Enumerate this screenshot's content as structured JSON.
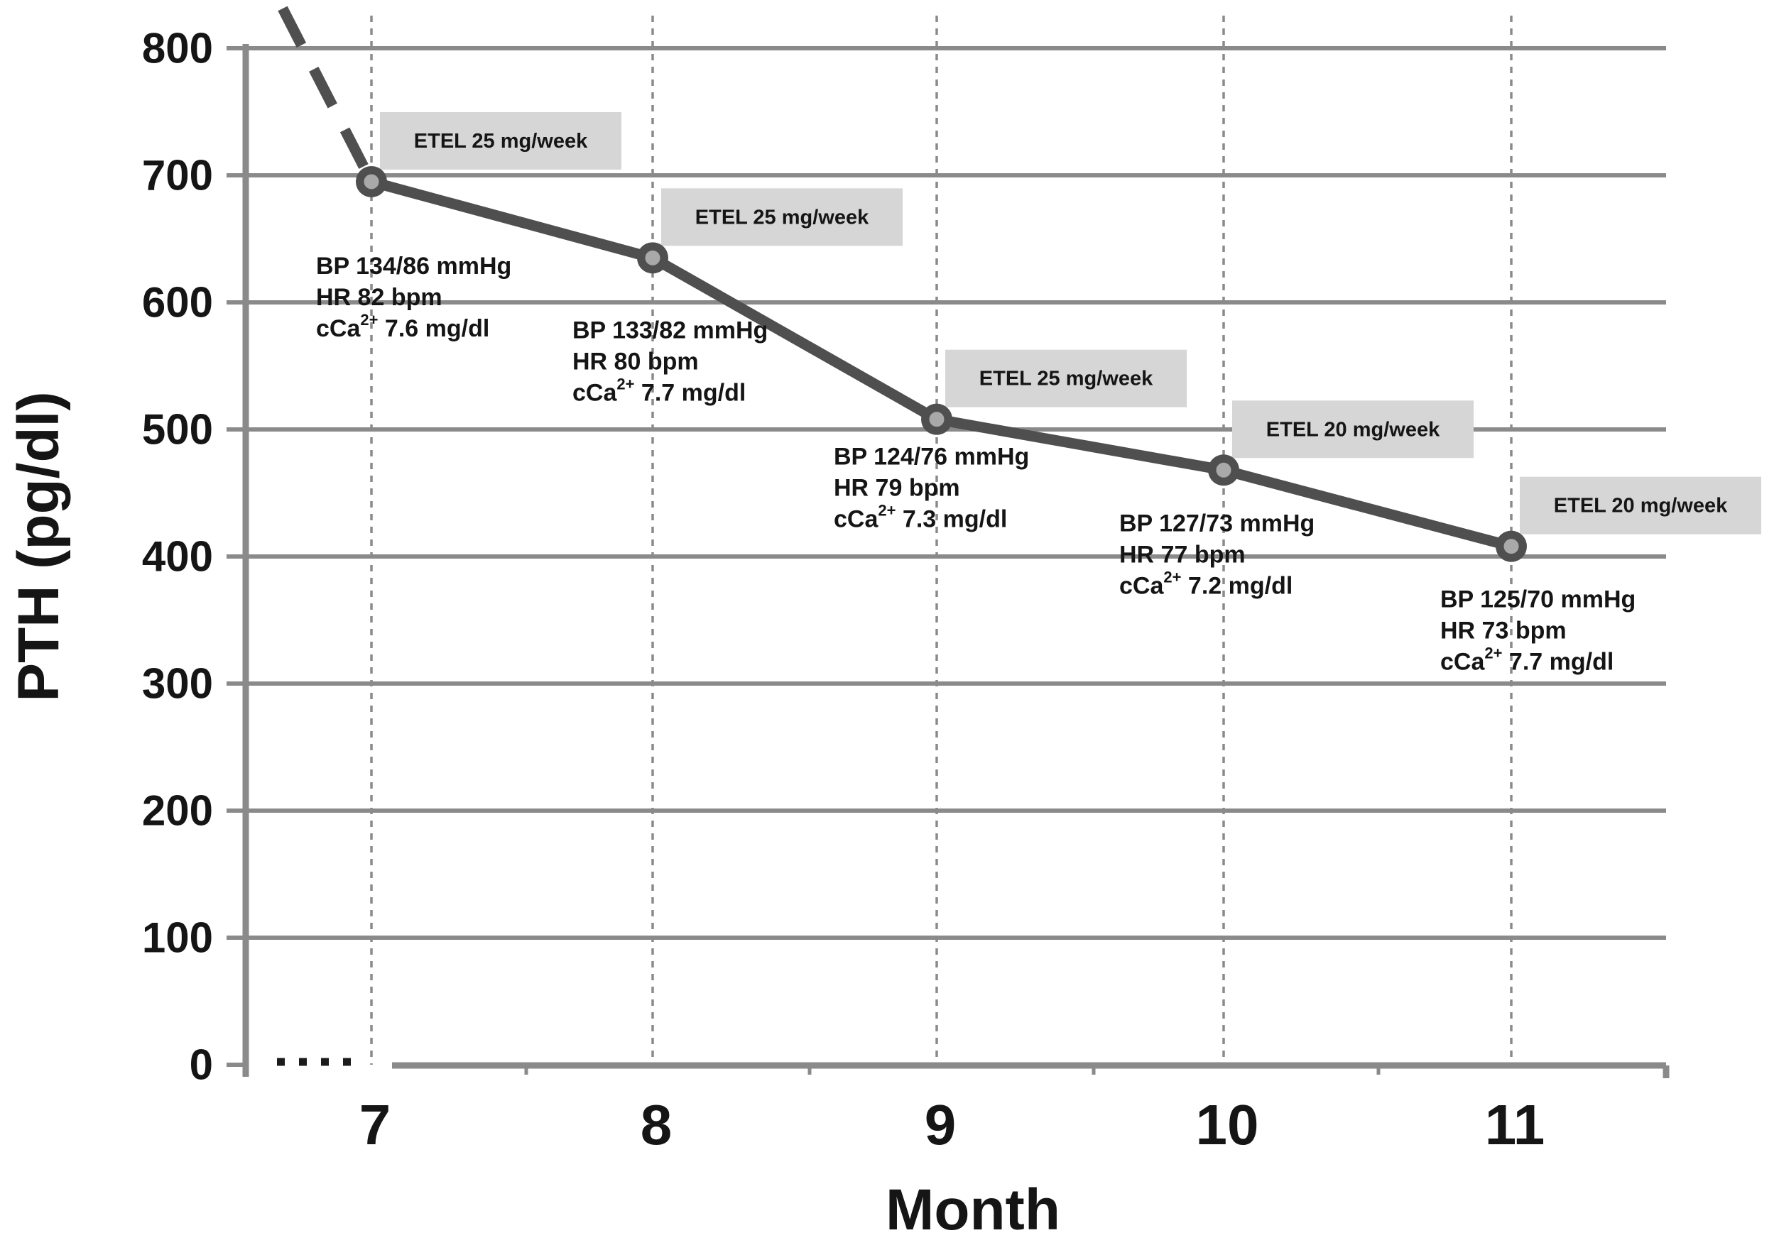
{
  "colors": {
    "line": "#4f4f4f",
    "marker_ring": "#4f4f4f",
    "marker_fill": "#a9a9a9",
    "grid": "#8a8a8a",
    "axis": "#8a8a8a",
    "dose_box_fill": "#d6d6d6",
    "text": "#151515",
    "background": "#ffffff"
  },
  "chart_data": {
    "type": "line",
    "title": "",
    "xlabel": "Month",
    "ylabel": "PTH (pg/dl)",
    "ylim": [
      0,
      800
    ],
    "ytick_interval": 100,
    "yticks": [
      800,
      700,
      600,
      500,
      400,
      300,
      200,
      100,
      0
    ],
    "x": [
      7,
      8,
      9,
      10,
      11
    ],
    "series": [
      {
        "name": "PTH",
        "values": [
          695,
          635,
          508,
          468,
          408
        ],
        "style": "thick dark-gray solid line with circular ring markers; dashed lead-in segment descending from above the 800 axis limit into the month-7 point; small black dotted segment on the baseline left of month 7"
      }
    ],
    "grid": "solid horizontal gridlines every 100 pg/dl; dotted vertical gridline at each month",
    "legend": "none",
    "annotations": [
      {
        "month": 7,
        "pth": 695,
        "dose": "ETEL 25 mg/week",
        "bp": "BP 134/86 mmHg",
        "hr": "HR 82 bpm",
        "cca": {
          "base": "cCa",
          "sup": "2+",
          "rest": "7.6 mg/dl"
        }
      },
      {
        "month": 8,
        "pth": 635,
        "dose": "ETEL 25 mg/week",
        "bp": "BP 133/82 mmHg",
        "hr": "HR 80 bpm",
        "cca": {
          "base": "cCa",
          "sup": "2+",
          "rest": "7.7 mg/dl"
        }
      },
      {
        "month": 9,
        "pth": 508,
        "dose": "ETEL 25 mg/week",
        "bp": "BP 124/76 mmHg",
        "hr": "HR 79 bpm",
        "cca": {
          "base": "cCa",
          "sup": "2+",
          "rest": "7.3 mg/dl"
        }
      },
      {
        "month": 10,
        "pth": 468,
        "dose": "ETEL 20 mg/week",
        "bp": "BP 127/73 mmHg",
        "hr": "HR 77 bpm",
        "cca": {
          "base": "cCa",
          "sup": "2+",
          "rest": "7.2 mg/dl"
        }
      },
      {
        "month": 11,
        "pth": 408,
        "dose": "ETEL 20 mg/week",
        "bp": "BP 125/70 mmHg",
        "hr": "HR 73 bpm",
        "cca": {
          "base": "cCa",
          "sup": "2+",
          "rest": "7.7 mg/dl"
        }
      }
    ]
  }
}
